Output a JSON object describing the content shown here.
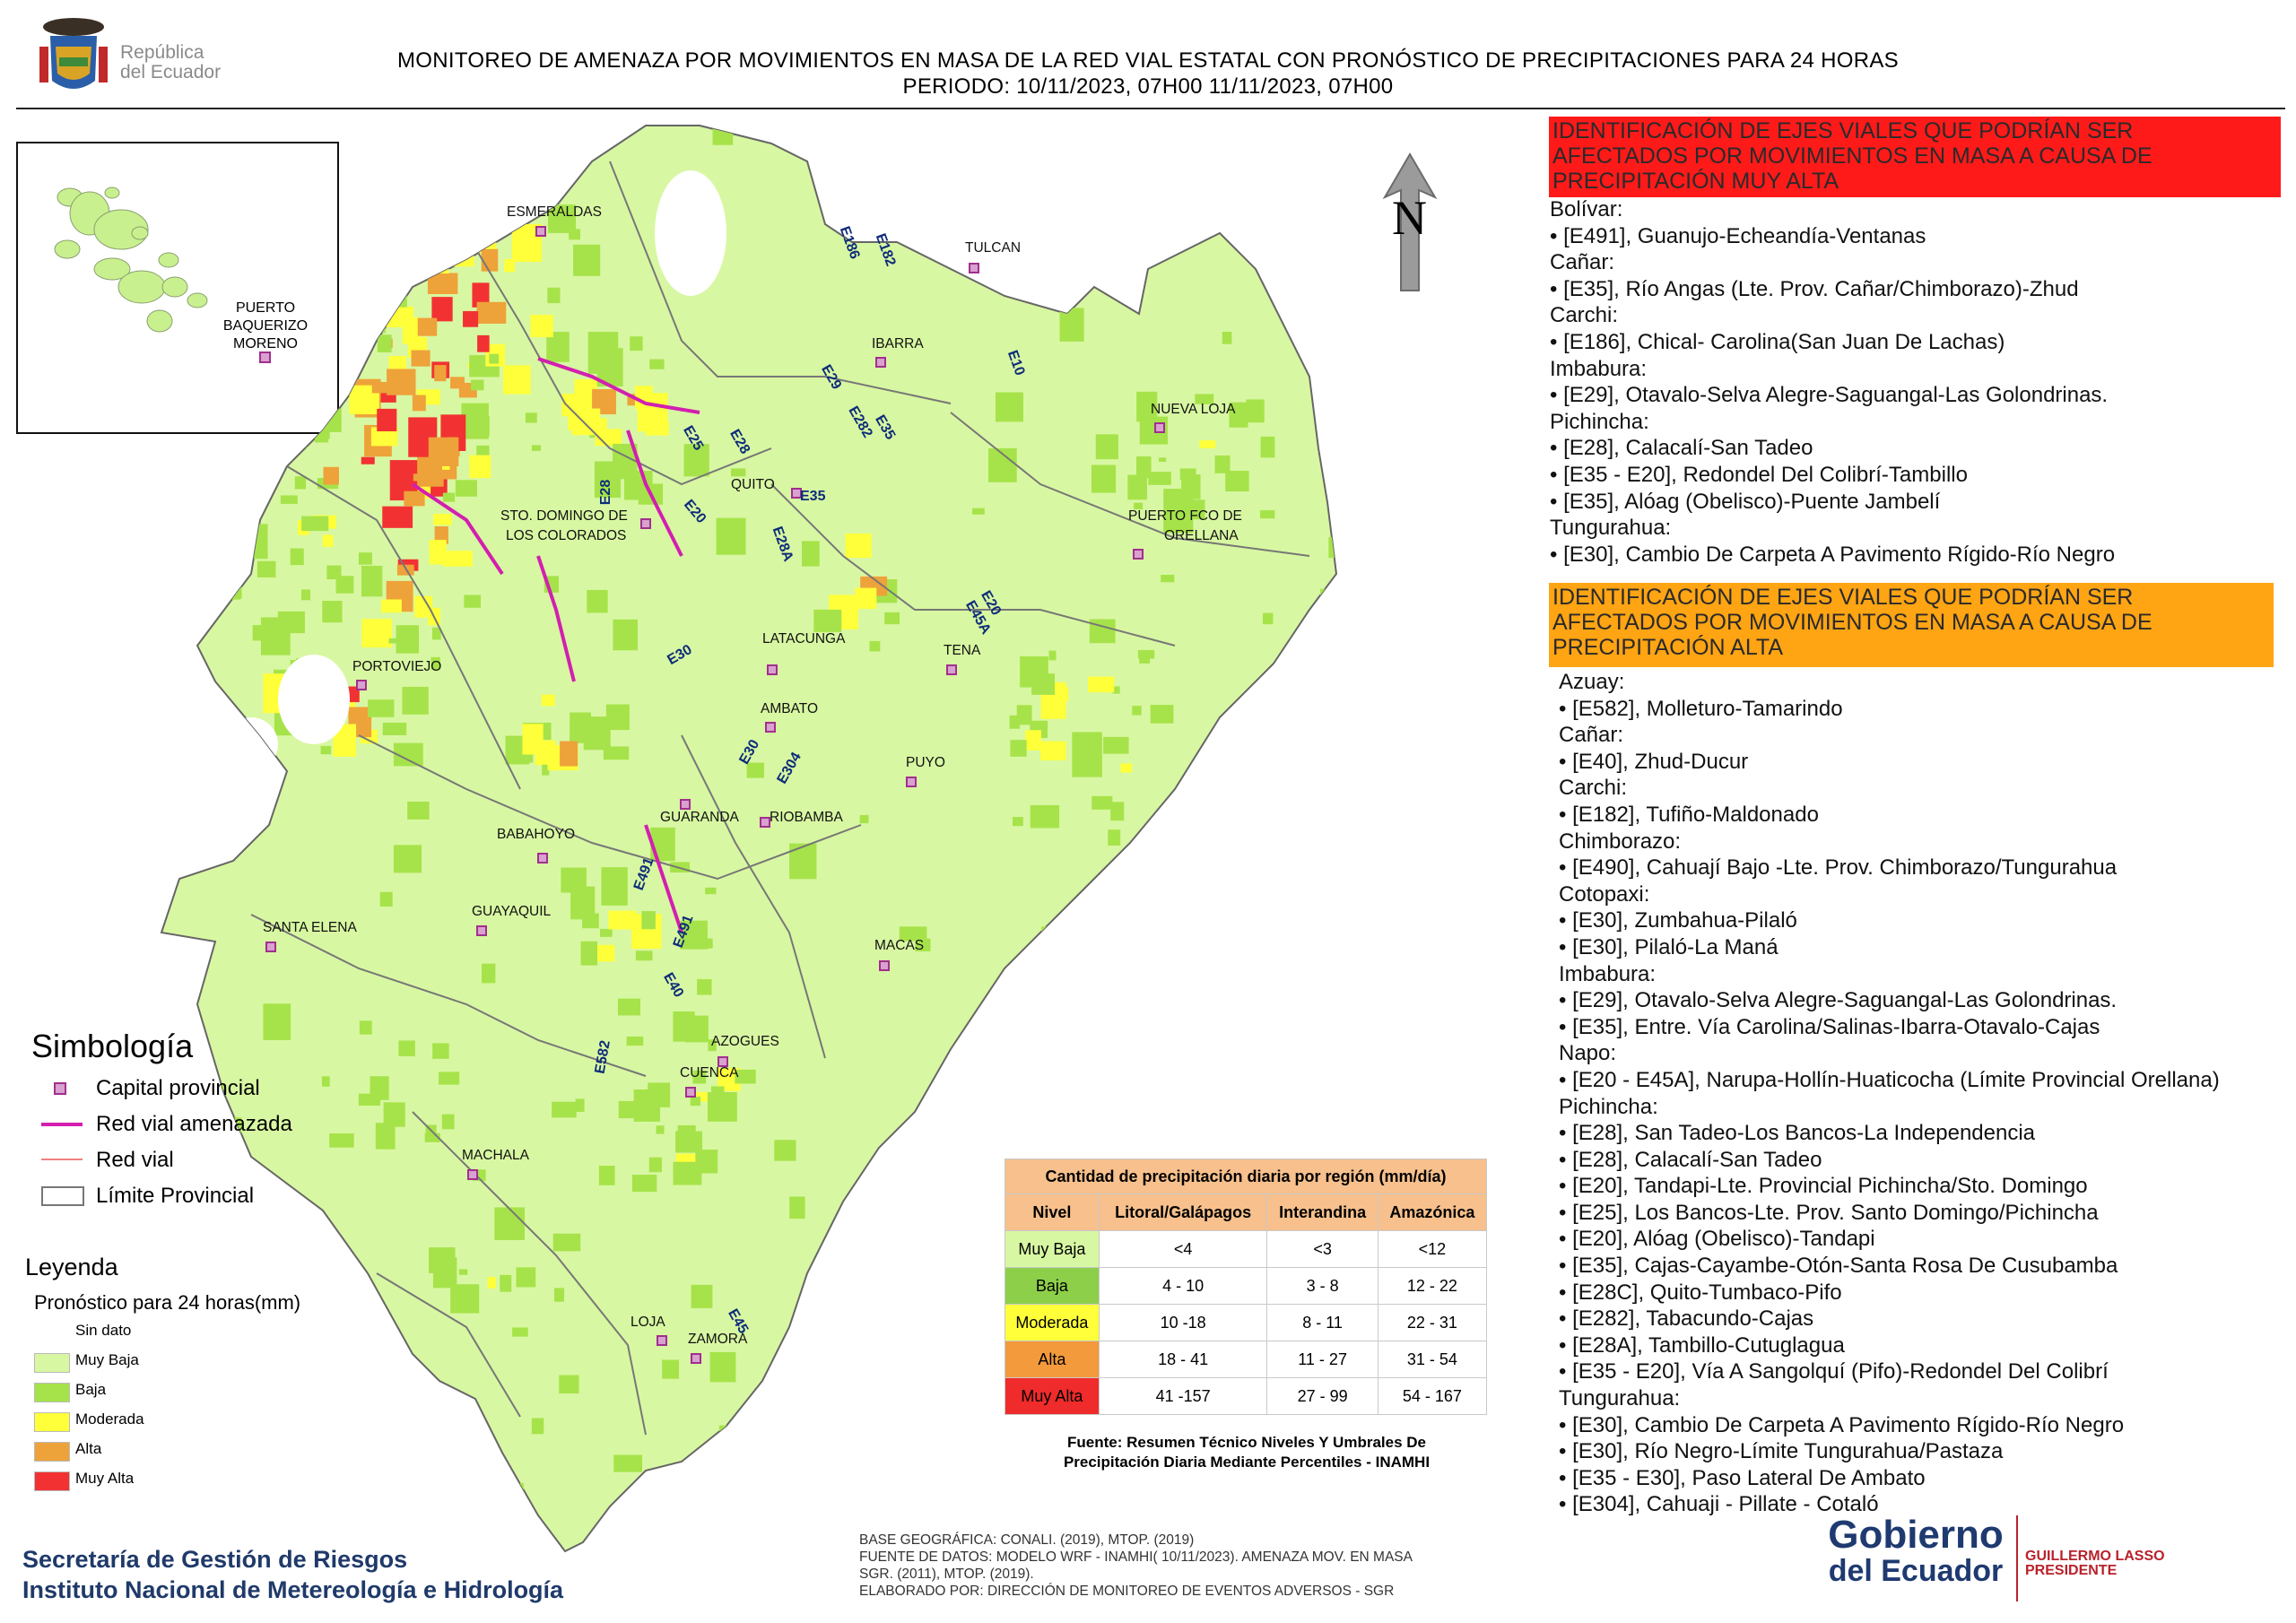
{
  "logo": {
    "republica": "República",
    "del_ecuador": "del Ecuador"
  },
  "header": {
    "line1": "MONITOREO DE AMENAZA POR MOVIMIENTOS EN MASA DE LA RED VIAL  ESTATAL  CON PRONÓSTICO  DE  PRECIPITACIONES PARA 24 HORAS",
    "line2": "PERIODO: 10/11/2023, 07H00 11/11/2023, 07H00"
  },
  "north_label": "N",
  "colors": {
    "muy_baja": "#d8f7a2",
    "baja": "#a6e34a",
    "moderada": "#ffff3a",
    "alta": "#eea23a",
    "muy_alta": "#f23232",
    "sin_dato": "#ffffff",
    "red_vial_amenazada": "#d21fb0",
    "red_vial": "#f08080",
    "limite": "#777777",
    "capital": "#a12f8e"
  },
  "inset_labels": {
    "puerto_baquerizo": [
      "PUERTO",
      "BAQUERIZO",
      "MORENO"
    ]
  },
  "cities": [
    {
      "id": "esmeraldas",
      "name": "ESMERALDAS"
    },
    {
      "id": "tulcan",
      "name": "TULCAN"
    },
    {
      "id": "ibarra",
      "name": "IBARRA"
    },
    {
      "id": "nueva_loja",
      "name": "NUEVA LOJA"
    },
    {
      "id": "quito",
      "name": "QUITO"
    },
    {
      "id": "sto_domingo",
      "name": "STO. DOMINGO DE"
    },
    {
      "id": "sto_domingo2",
      "name": "LOS COLORADOS"
    },
    {
      "id": "puerto_fco",
      "name": "PUERTO FCO DE"
    },
    {
      "id": "puerto_fco2",
      "name": "ORELLANA"
    },
    {
      "id": "portoviejo",
      "name": "PORTOVIEJO"
    },
    {
      "id": "latacunga",
      "name": "LATACUNGA"
    },
    {
      "id": "tena",
      "name": "TENA"
    },
    {
      "id": "ambato",
      "name": "AMBATO"
    },
    {
      "id": "puyo",
      "name": "PUYO"
    },
    {
      "id": "guaranda",
      "name": "GUARANDA"
    },
    {
      "id": "riobamba",
      "name": "RIOBAMBA"
    },
    {
      "id": "babahoyo",
      "name": "BABAHOYO"
    },
    {
      "id": "guayaquil",
      "name": "GUAYAQUIL"
    },
    {
      "id": "santa_elena",
      "name": "SANTA ELENA"
    },
    {
      "id": "macas",
      "name": "MACAS"
    },
    {
      "id": "azogues",
      "name": "AZOGUES"
    },
    {
      "id": "cuenca",
      "name": "CUENCA"
    },
    {
      "id": "machala",
      "name": "MACHALA"
    },
    {
      "id": "loja",
      "name": "LOJA"
    },
    {
      "id": "zamora",
      "name": "ZAMORA"
    }
  ],
  "road_labels": [
    "E186",
    "E182",
    "E10",
    "E29",
    "E282",
    "E35",
    "E25",
    "E28",
    "E28",
    "E35",
    "E20",
    "E28A",
    "E20",
    "E45A",
    "E30",
    "E30",
    "E304",
    "E491",
    "E491",
    "E40",
    "E582",
    "E45"
  ],
  "very_high": {
    "header": "IDENTIFICACIÓN DE EJES VIALES QUE PODRÍAN SER AFECTADOS POR MOVIMIENTOS EN MASA A CAUSA DE PRECIPITACIÓN MUY ALTA",
    "header_lines": [
      "IDENTIFICACIÓN DE EJES VIALES QUE PODRÍAN SER",
      "AFECTADOS POR MOVIMIENTOS EN MASA A CAUSA DE",
      "PRECIPITACIÓN MUY ALTA"
    ],
    "lines": [
      "Bolívar:",
      "• [E491], Guanujo-Echeandía-Ventanas",
      "Cañar:",
      "• [E35], Río Angas (Lte. Prov. Cañar/Chimborazo)-Zhud",
      "Carchi:",
      "• [E186], Chical- Carolina(San Juan De Lachas)",
      "Imbabura:",
      "• [E29], Otavalo-Selva Alegre-Saguangal-Las Golondrinas.",
      "Pichincha:",
      "• [E28], Calacalí-San Tadeo",
      "• [E35 - E20], Redondel Del Colibrí-Tambillo",
      "• [E35], Alóag (Obelisco)-Puente Jambelí",
      "Tungurahua:",
      "• [E30], Cambio De Carpeta A Pavimento Rígido-Río Negro"
    ]
  },
  "high": {
    "header_lines": [
      "IDENTIFICACIÓN DE EJES VIALES QUE PODRÍAN SER",
      "AFECTADOS POR MOVIMIENTOS EN MASA A CAUSA DE",
      "PRECIPITACIÓN  ALTA"
    ],
    "lines": [
      "Azuay:",
      "• [E582], Molleturo-Tamarindo",
      "Cañar:",
      "• [E40], Zhud-Ducur",
      "Carchi:",
      "• [E182], Tufiño-Maldonado",
      "Chimborazo:",
      "• [E490], Cahuají Bajo -Lte. Prov. Chimborazo/Tungurahua",
      "Cotopaxi:",
      "• [E30], Zumbahua-Pilaló",
      "• [E30], Pilaló-La Maná",
      "Imbabura:",
      "• [E29], Otavalo-Selva Alegre-Saguangal-Las Golondrinas.",
      "• [E35], Entre. Vía Carolina/Salinas-Ibarra-Otavalo-Cajas",
      "Napo:",
      "• [E20 - E45A], Narupa-Hollín-Huaticocha (Límite Provincial Orellana)",
      "Pichincha:",
      "• [E28], San Tadeo-Los Bancos-La Independencia",
      "• [E28], Calacalí-San Tadeo",
      "• [E20], Tandapi-Lte. Provincial Pichincha/Sto. Domingo",
      "• [E25], Los Bancos-Lte. Prov. Santo Domingo/Pichincha",
      "• [E20], Alóag (Obelisco)-Tandapi",
      "• [E35], Cajas-Cayambe-Otón-Santa Rosa De Cusubamba",
      "• [E28C], Quito-Tumbaco-Pifo",
      "• [E282], Tabacundo-Cajas",
      "• [E28A], Tambillo-Cutuglagua",
      "• [E35 - E20], Vía A Sangolquí (Pifo)-Redondel Del Colibrí",
      "Tungurahua:",
      "• [E30], Cambio De Carpeta A Pavimento Rígido-Río Negro",
      "• [E30], Río Negro-Límite Tungurahua/Pastaza",
      "• [E35 - E30], Paso Lateral De Ambato",
      "• [E304], Cahuaji - Pillate - Cotaló"
    ]
  },
  "simbologia": {
    "title": "Simbología",
    "items": [
      {
        "icon": "capital-icon",
        "label": "Capital provincial"
      },
      {
        "icon": "threatened-road-icon",
        "label": "Red vial amenazada"
      },
      {
        "icon": "road-icon",
        "label": "Red vial"
      },
      {
        "icon": "boundary-icon",
        "label": "Límite Provincial"
      }
    ]
  },
  "leyenda": {
    "title": "Leyenda",
    "subtitle": "Pronóstico para 24 horas(mm)",
    "items": [
      "Sin dato",
      "Muy Baja",
      "Baja",
      "Moderada",
      "Alta",
      "Muy Alta"
    ]
  },
  "table": {
    "title": "Cantidad de precipitación diaria por región (mm/día)",
    "headers": [
      "Nivel",
      "Litoral/Galápagos",
      "Interandina",
      "Amazónica"
    ],
    "rows": [
      [
        "Muy Baja",
        "<4",
        "<3",
        "<12"
      ],
      [
        "Baja",
        "4 - 10",
        "3 - 8",
        "12 - 22"
      ],
      [
        "Moderada",
        "10 -18",
        "8 - 11",
        "22 - 31"
      ],
      [
        "Alta",
        "18 - 41",
        "11 - 27",
        "31 - 54"
      ],
      [
        "Muy Alta",
        "41 -157",
        "27 - 99",
        "54 - 167"
      ]
    ],
    "source_lines": [
      "Fuente: Resumen Técnico Niveles Y Umbrales De",
      "Precipitación Diaria Mediante Percentiles - INAMHI"
    ]
  },
  "credits": [
    "BASE GEOGRÁFICA: CONALI. (2019), MTOP. (2019)",
    "FUENTE DE DATOS: MODELO WRF - INAMHI( 10/11/2023).  AMENAZA MOV. EN MASA",
    "SGR. (2011), MTOP. (2019).",
    "ELABORADO POR: DIRECCIÓN DE MONITOREO DE EVENTOS ADVERSOS - SGR"
  ],
  "footer_left": [
    "Secretaría de Gestión de Riesgos",
    "Instituto Nacional de Metereología e Hidrología"
  ],
  "gobierno": {
    "line1": "Gobierno",
    "line2": "del Ecuador",
    "pres1": "GUILLERMO LASSO",
    "pres2": "PRESIDENTE"
  }
}
